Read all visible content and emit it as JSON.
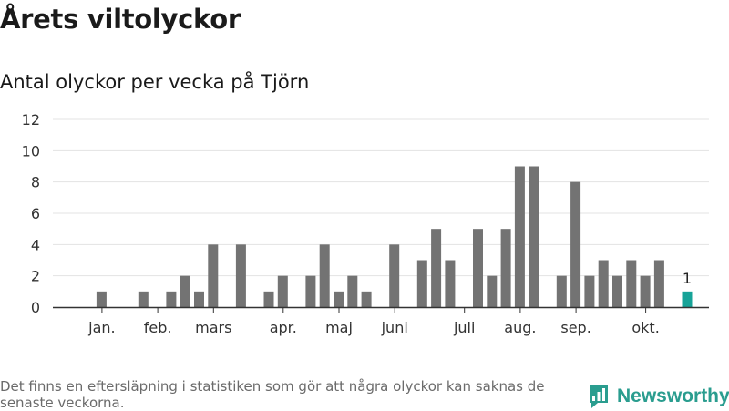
{
  "title": "Årets viltolyckor",
  "subtitle": "Antal olyckor per vecka på Tjörn",
  "footnote": "Det finns en eftersläpning i statistiken som gör att några olyckor kan saknas de senaste veckorna.",
  "brand": {
    "name": "Newsworthy",
    "icon": "newsworthy-logo-icon"
  },
  "colors": {
    "bar": "#737373",
    "highlight": "#17a398",
    "grid": "#e3e3e3",
    "axis": "#333333",
    "brand": "#2a9d8f"
  },
  "chart_data": {
    "type": "bar",
    "title": "Antal olyckor per vecka på Tjörn",
    "xlabel": "",
    "ylabel": "",
    "ylim": [
      0,
      12
    ],
    "yticks": [
      0,
      2,
      4,
      6,
      8,
      10,
      12
    ],
    "grid": true,
    "weeks": [
      1,
      2,
      3,
      4,
      5,
      6,
      7,
      8,
      9,
      10,
      11,
      12,
      13,
      14,
      15,
      16,
      17,
      18,
      19,
      20,
      21,
      22,
      23,
      24,
      25,
      26,
      27,
      28,
      29,
      30,
      31,
      32,
      33,
      34,
      35,
      36,
      37,
      38,
      39,
      40,
      41,
      42,
      43,
      44,
      45
    ],
    "values": [
      0,
      1,
      0,
      0,
      1,
      0,
      1,
      2,
      1,
      4,
      0,
      4,
      0,
      1,
      2,
      0,
      2,
      4,
      1,
      2,
      1,
      0,
      4,
      0,
      3,
      5,
      3,
      0,
      5,
      2,
      5,
      9,
      9,
      0,
      2,
      8,
      2,
      3,
      2,
      3,
      2,
      3,
      0,
      1,
      0
    ],
    "highlight_week": 44,
    "highlight_label": "1",
    "month_labels": [
      {
        "label": "jan.",
        "week": 2.5
      },
      {
        "label": "feb.",
        "week": 6.5
      },
      {
        "label": "mars",
        "week": 10.5
      },
      {
        "label": "apr.",
        "week": 15.5
      },
      {
        "label": "maj",
        "week": 19.5
      },
      {
        "label": "juni",
        "week": 23.5
      },
      {
        "label": "juli",
        "week": 28.5
      },
      {
        "label": "aug.",
        "week": 32.5
      },
      {
        "label": "sep.",
        "week": 36.5
      },
      {
        "label": "okt.",
        "week": 41.5
      }
    ]
  }
}
